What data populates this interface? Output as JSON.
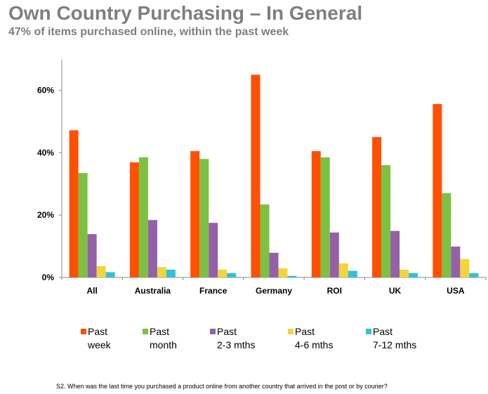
{
  "chart_data": {
    "type": "bar",
    "title": "Own Country Purchasing – In General",
    "subtitle": "47% of items purchased online, within the past week",
    "categories": [
      "All",
      "Australia",
      "France",
      "Germany",
      "ROI",
      "UK",
      "USA"
    ],
    "series": [
      {
        "name": "Past week",
        "label_lines": [
          "Past",
          "week"
        ],
        "color": "#ff5000",
        "values": [
          47.2,
          36.9,
          40.5,
          65.0,
          40.5,
          45.0,
          55.6
        ]
      },
      {
        "name": "Past month",
        "label_lines": [
          "Past",
          "month"
        ],
        "color": "#7dc142",
        "values": [
          33.5,
          38.5,
          38.0,
          23.4,
          38.5,
          36.0,
          27.0
        ]
      },
      {
        "name": "Past 2-3 mths",
        "label_lines": [
          "Past",
          "2-3 mths"
        ],
        "color": "#9461a8",
        "values": [
          13.9,
          18.4,
          17.5,
          7.9,
          14.4,
          14.9,
          9.9
        ]
      },
      {
        "name": "Past 4-6 mths",
        "label_lines": [
          "Past",
          "4-6 mths"
        ],
        "color": "#f2d53c",
        "values": [
          3.6,
          3.3,
          2.5,
          2.9,
          4.5,
          2.5,
          5.9
        ]
      },
      {
        "name": "Past 7-12 mths",
        "label_lines": [
          "Past",
          "7-12 mths"
        ],
        "color": "#35c0d8",
        "values": [
          1.7,
          2.5,
          1.4,
          0.5,
          2.1,
          1.4,
          1.4
        ]
      }
    ],
    "yticks": [
      0,
      20,
      40,
      60
    ],
    "ytick_labels": [
      "0%",
      "20%",
      "40%",
      "60%"
    ],
    "ylim": [
      0,
      70
    ],
    "xlabel": "",
    "ylabel": "",
    "grid": false,
    "legend_placement": "bottom"
  },
  "footnote": "S2. When was the last time you purchased a product online from another country that arrived in the post or by courier?"
}
